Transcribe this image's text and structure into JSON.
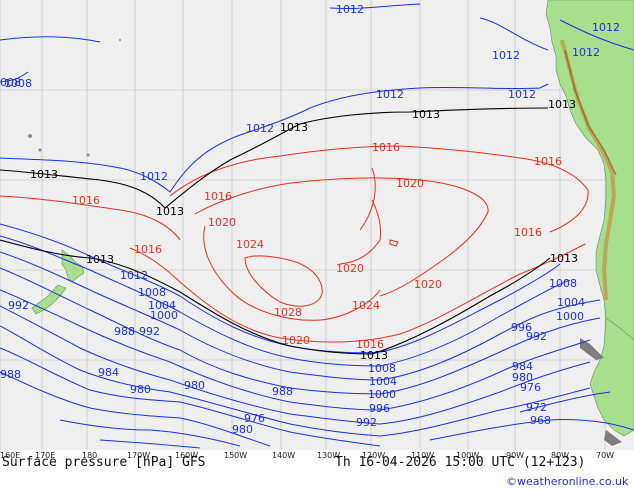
{
  "footer": {
    "title": "Surface pressure [hPa] GFS",
    "datetime": "Th 16-04-2026 15:00 UTC (12+123)",
    "credit": "©weatheronline.co.uk"
  },
  "longitude_ticks": [
    "160E",
    "170E",
    "180",
    "170W",
    "160W",
    "150W",
    "140W",
    "130W",
    "120W",
    "110W",
    "100W",
    "90W",
    "80W",
    "70W"
  ],
  "isobars": {
    "blue": [
      "1012",
      "1012",
      "1012",
      "1012",
      "1012",
      "1012",
      "1012",
      "1012",
      "1012",
      "1008",
      "1008",
      "1008",
      "1008",
      "1004",
      "1004",
      "1004",
      "1000",
      "1000",
      "1000",
      "996",
      "996",
      "992",
      "992",
      "992",
      "992",
      "988",
      "988",
      "988",
      "984",
      "984",
      "980",
      "980",
      "980",
      "980",
      "976",
      "976",
      "972",
      "968",
      "008"
    ],
    "red": [
      "1016",
      "1016",
      "1016",
      "1016",
      "1016",
      "1016",
      "1020",
      "1020",
      "1020",
      "1020",
      "1024",
      "1024",
      "1028",
      "1020",
      "1016"
    ],
    "black": [
      "1013",
      "1013",
      "1013",
      "1013",
      "1013",
      "1013",
      "1013",
      "1013"
    ]
  },
  "colors": {
    "ocean": "#efefef",
    "land": "#a6e08d",
    "isobar_low": "#1d30e6",
    "isobar_high": "#e8301f",
    "isobar_standard": "#000000"
  }
}
